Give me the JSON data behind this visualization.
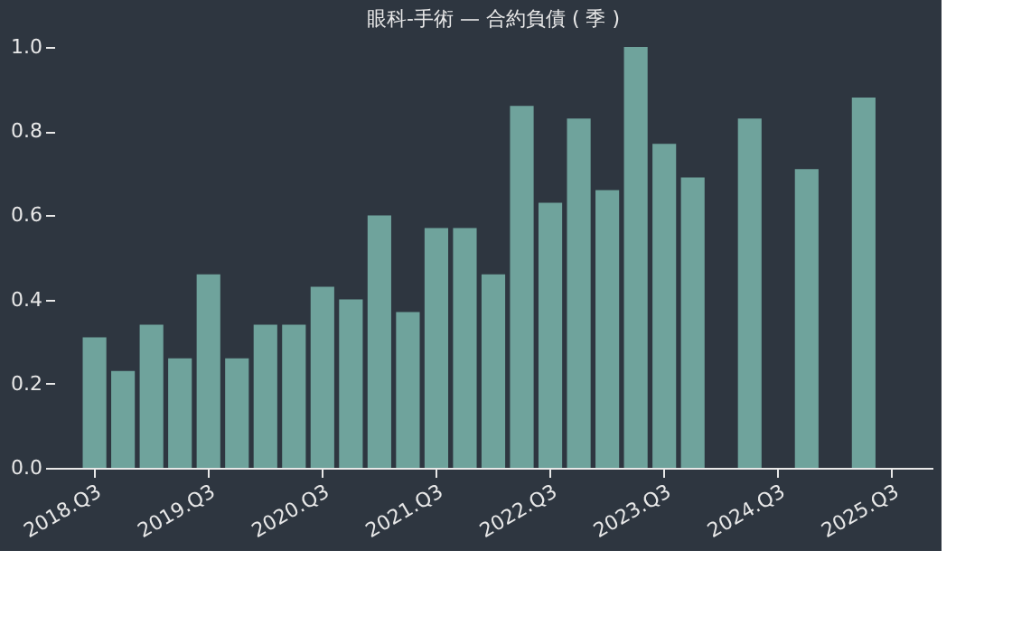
{
  "chart_data": {
    "type": "bar",
    "title": "眼科-手術 — 合約負債 ( 季 )",
    "categories": [
      "2018.Q3",
      null,
      null,
      null,
      "2019.Q3",
      null,
      null,
      null,
      "2020.Q3",
      null,
      null,
      null,
      "2021.Q3",
      null,
      null,
      null,
      "2022.Q3",
      null,
      null,
      null,
      "2023.Q3",
      null,
      null,
      null,
      "2024.Q3",
      null,
      null,
      null,
      "2025.Q3"
    ],
    "values": [
      0.31,
      0.23,
      0.34,
      0.26,
      0.46,
      0.26,
      0.34,
      0.34,
      0.43,
      0.4,
      0.6,
      0.37,
      0.57,
      0.57,
      0.46,
      0.86,
      0.63,
      0.83,
      0.66,
      1.0,
      0.77,
      0.69,
      null,
      0.83,
      null,
      0.71,
      null,
      0.88,
      null
    ],
    "color": "#6fa39c",
    "ylim": [
      0,
      1.0
    ],
    "yticks": [
      {
        "value": 0,
        "label": "0.0"
      },
      {
        "value": 0.2,
        "label": "0.2"
      },
      {
        "value": 0.4,
        "label": "0.4"
      },
      {
        "value": 0.6,
        "label": "0.6"
      },
      {
        "value": 0.8,
        "label": "0.8"
      },
      {
        "value": 1.0,
        "label": "1.0"
      }
    ],
    "grid": false
  }
}
